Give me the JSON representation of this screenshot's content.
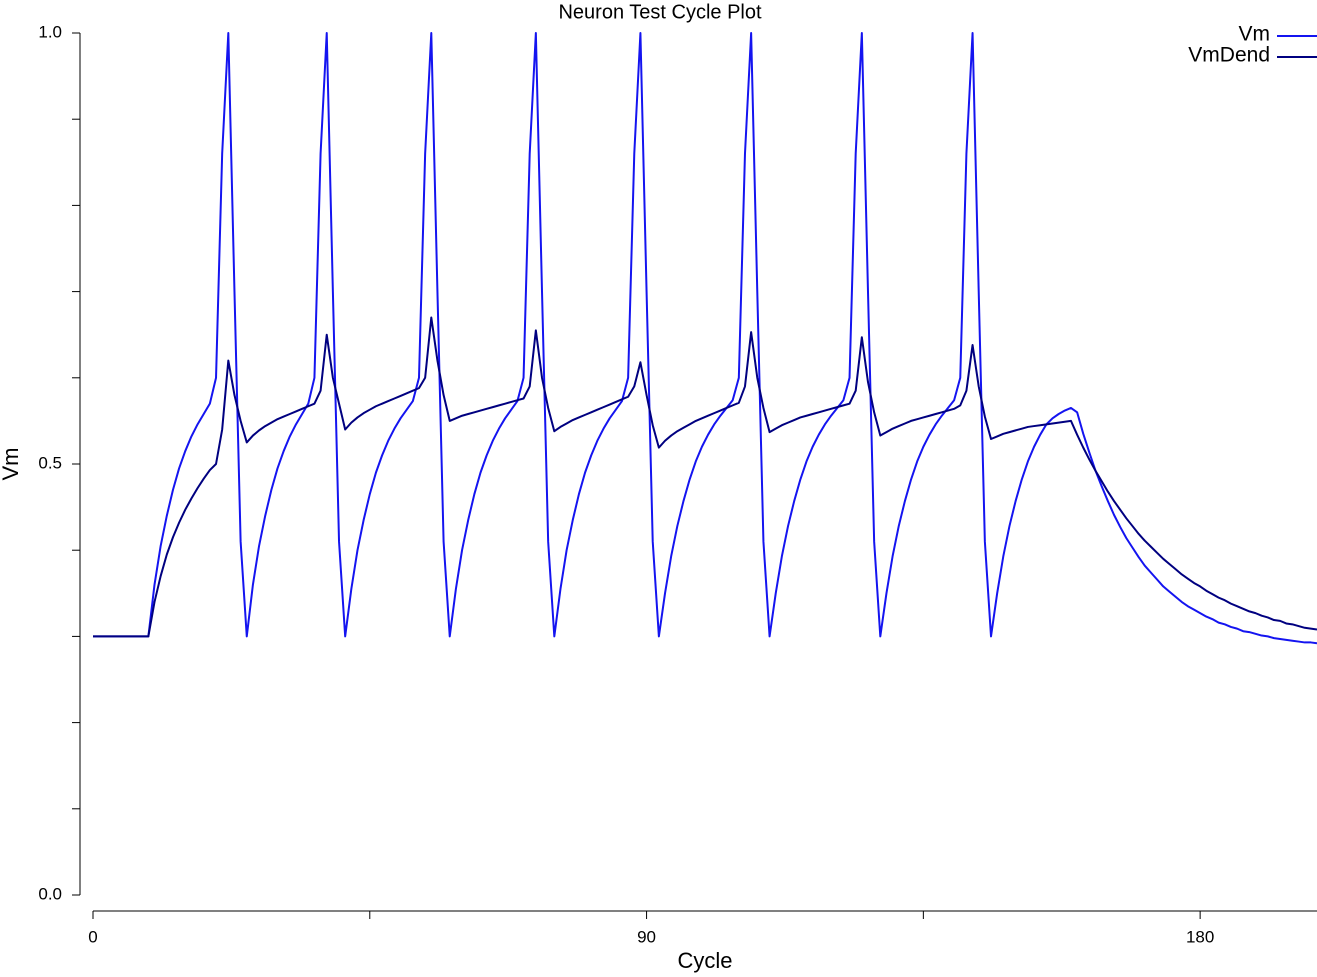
{
  "chart_data": {
    "type": "line",
    "title": "Neuron Test Cycle Plot",
    "x_label": "Cycle",
    "y_label": "Vm",
    "xlim": [
      0,
      199
    ],
    "xticks": [
      0,
      90,
      180
    ],
    "xminor_ticks": [
      45,
      135
    ],
    "ylim": [
      0,
      1
    ],
    "yticks": [
      {
        "value": 0,
        "label": "0.0"
      },
      0.5,
      {
        "value": 1,
        "label": "1.0"
      }
    ],
    "yminor_ticks": [
      0.1,
      0.2,
      0.3,
      0.4,
      0.6,
      0.7,
      0.8,
      0.9
    ],
    "legend": "top-right",
    "x": [
      0,
      1,
      2,
      3,
      4,
      5,
      6,
      7,
      8,
      9,
      10,
      11,
      12,
      13,
      14,
      15,
      16,
      17,
      18,
      19,
      20,
      21,
      22,
      23,
      24,
      25,
      26,
      27,
      28,
      29,
      30,
      31,
      32,
      33,
      34,
      35,
      36,
      37,
      38,
      39,
      40,
      41,
      42,
      43,
      44,
      45,
      46,
      47,
      48,
      49,
      50,
      51,
      52,
      53,
      54,
      55,
      56,
      57,
      58,
      59,
      60,
      61,
      62,
      63,
      64,
      65,
      66,
      67,
      68,
      69,
      70,
      71,
      72,
      73,
      74,
      75,
      76,
      77,
      78,
      79,
      80,
      81,
      82,
      83,
      84,
      85,
      86,
      87,
      88,
      89,
      90,
      91,
      92,
      93,
      94,
      95,
      96,
      97,
      98,
      99,
      100,
      101,
      102,
      103,
      104,
      105,
      106,
      107,
      108,
      109,
      110,
      111,
      112,
      113,
      114,
      115,
      116,
      117,
      118,
      119,
      120,
      121,
      122,
      123,
      124,
      125,
      126,
      127,
      128,
      129,
      130,
      131,
      132,
      133,
      134,
      135,
      136,
      137,
      138,
      139,
      140,
      141,
      142,
      143,
      144,
      145,
      146,
      147,
      148,
      149,
      150,
      151,
      152,
      153,
      154,
      155,
      156,
      157,
      158,
      159,
      160,
      161,
      162,
      163,
      164,
      165,
      166,
      167,
      168,
      169,
      170,
      171,
      172,
      173,
      174,
      175,
      176,
      177,
      178,
      179,
      180,
      181,
      182,
      183,
      184,
      185,
      186,
      187,
      188,
      189,
      190,
      191,
      192,
      193,
      194,
      195,
      196,
      197,
      198,
      199
    ],
    "series": [
      {
        "name": "Vm",
        "color": "#1414f0",
        "values": [
          0.3,
          0.3,
          0.3,
          0.3,
          0.3,
          0.3,
          0.3,
          0.3,
          0.3,
          0.3,
          0.36,
          0.405,
          0.44,
          0.47,
          0.495,
          0.515,
          0.532,
          0.546,
          0.558,
          0.57,
          0.6,
          0.86,
          1.0,
          0.7,
          0.41,
          0.3,
          0.36,
          0.405,
          0.44,
          0.47,
          0.495,
          0.515,
          0.532,
          0.546,
          0.558,
          0.57,
          0.6,
          0.86,
          1.0,
          0.7,
          0.41,
          0.3,
          0.355,
          0.4,
          0.435,
          0.465,
          0.49,
          0.51,
          0.527,
          0.541,
          0.553,
          0.563,
          0.573,
          0.6,
          0.86,
          1.0,
          0.7,
          0.41,
          0.3,
          0.355,
          0.4,
          0.435,
          0.465,
          0.49,
          0.51,
          0.527,
          0.541,
          0.553,
          0.563,
          0.573,
          0.6,
          0.86,
          1.0,
          0.7,
          0.41,
          0.3,
          0.355,
          0.4,
          0.435,
          0.465,
          0.49,
          0.51,
          0.527,
          0.541,
          0.553,
          0.563,
          0.573,
          0.6,
          0.86,
          1.0,
          0.7,
          0.41,
          0.3,
          0.35,
          0.393,
          0.428,
          0.457,
          0.482,
          0.503,
          0.52,
          0.534,
          0.546,
          0.556,
          0.565,
          0.574,
          0.6,
          0.86,
          1.0,
          0.7,
          0.41,
          0.3,
          0.35,
          0.393,
          0.428,
          0.457,
          0.482,
          0.503,
          0.52,
          0.534,
          0.546,
          0.556,
          0.565,
          0.574,
          0.6,
          0.86,
          1.0,
          0.7,
          0.41,
          0.3,
          0.35,
          0.393,
          0.428,
          0.457,
          0.482,
          0.503,
          0.52,
          0.534,
          0.546,
          0.556,
          0.565,
          0.574,
          0.6,
          0.86,
          1.0,
          0.7,
          0.41,
          0.3,
          0.35,
          0.393,
          0.428,
          0.457,
          0.482,
          0.503,
          0.52,
          0.534,
          0.546,
          0.553,
          0.558,
          0.562,
          0.565,
          0.56,
          0.535,
          0.513,
          0.492,
          0.474,
          0.457,
          0.441,
          0.427,
          0.414,
          0.403,
          0.392,
          0.382,
          0.374,
          0.366,
          0.358,
          0.352,
          0.346,
          0.34,
          0.335,
          0.331,
          0.327,
          0.323,
          0.32,
          0.316,
          0.314,
          0.311,
          0.309,
          0.306,
          0.305,
          0.303,
          0.301,
          0.3,
          0.298,
          0.297,
          0.296,
          0.295,
          0.294,
          0.293,
          0.293,
          0.292
        ]
      },
      {
        "name": "VmDend",
        "color": "#000080",
        "values": [
          0.3,
          0.3,
          0.3,
          0.3,
          0.3,
          0.3,
          0.3,
          0.3,
          0.3,
          0.3,
          0.34,
          0.37,
          0.395,
          0.415,
          0.432,
          0.447,
          0.46,
          0.472,
          0.483,
          0.493,
          0.5,
          0.54,
          0.62,
          0.58,
          0.55,
          0.525,
          0.533,
          0.539,
          0.544,
          0.548,
          0.552,
          0.555,
          0.558,
          0.561,
          0.564,
          0.567,
          0.57,
          0.585,
          0.65,
          0.6,
          0.57,
          0.54,
          0.548,
          0.554,
          0.559,
          0.563,
          0.567,
          0.57,
          0.573,
          0.576,
          0.579,
          0.582,
          0.585,
          0.588,
          0.6,
          0.67,
          0.62,
          0.58,
          0.55,
          0.553,
          0.556,
          0.558,
          0.56,
          0.562,
          0.564,
          0.566,
          0.568,
          0.57,
          0.572,
          0.574,
          0.576,
          0.59,
          0.655,
          0.6,
          0.565,
          0.538,
          0.543,
          0.547,
          0.551,
          0.554,
          0.557,
          0.56,
          0.563,
          0.566,
          0.569,
          0.572,
          0.575,
          0.578,
          0.59,
          0.618,
          0.58,
          0.545,
          0.519,
          0.527,
          0.533,
          0.538,
          0.542,
          0.546,
          0.55,
          0.553,
          0.556,
          0.559,
          0.562,
          0.565,
          0.568,
          0.571,
          0.59,
          0.653,
          0.6,
          0.565,
          0.537,
          0.541,
          0.545,
          0.548,
          0.551,
          0.554,
          0.556,
          0.558,
          0.56,
          0.562,
          0.564,
          0.566,
          0.568,
          0.57,
          0.585,
          0.647,
          0.595,
          0.56,
          0.533,
          0.537,
          0.541,
          0.544,
          0.547,
          0.55,
          0.552,
          0.554,
          0.556,
          0.558,
          0.56,
          0.562,
          0.564,
          0.568,
          0.585,
          0.638,
          0.59,
          0.555,
          0.529,
          0.532,
          0.535,
          0.537,
          0.539,
          0.541,
          0.543,
          0.544,
          0.545,
          0.546,
          0.547,
          0.548,
          0.549,
          0.55,
          0.534,
          0.519,
          0.505,
          0.492,
          0.48,
          0.468,
          0.457,
          0.447,
          0.437,
          0.428,
          0.419,
          0.411,
          0.404,
          0.397,
          0.39,
          0.384,
          0.378,
          0.372,
          0.367,
          0.362,
          0.358,
          0.353,
          0.349,
          0.345,
          0.342,
          0.338,
          0.335,
          0.332,
          0.329,
          0.327,
          0.324,
          0.322,
          0.319,
          0.318,
          0.315,
          0.314,
          0.312,
          0.31,
          0.309,
          0.308
        ]
      }
    ]
  }
}
